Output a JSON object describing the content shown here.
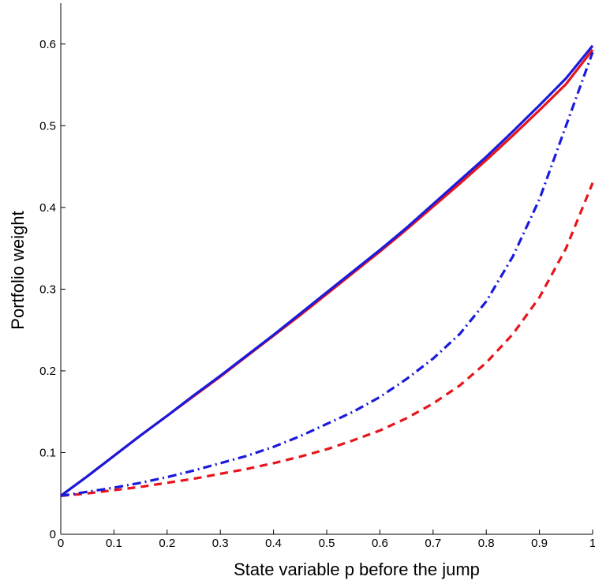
{
  "chart_data": {
    "type": "line",
    "title": "",
    "xlabel": "State variable p before the jump",
    "ylabel": "Portfolio weight",
    "xlim": [
      0,
      1
    ],
    "ylim": [
      0,
      0.65
    ],
    "xticks": [
      "0",
      "0.1",
      "0.2",
      "0.3",
      "0.4",
      "0.5",
      "0.6",
      "0.7",
      "0.8",
      "0.9",
      "1"
    ],
    "yticks": [
      "0",
      "0.1",
      "0.2",
      "0.3",
      "0.4",
      "0.5",
      "0.6"
    ],
    "grid": false,
    "x": [
      0,
      0.05,
      0.1,
      0.15,
      0.2,
      0.25,
      0.3,
      0.35,
      0.4,
      0.45,
      0.5,
      0.55,
      0.6,
      0.65,
      0.7,
      0.75,
      0.8,
      0.85,
      0.9,
      0.95,
      1.0
    ],
    "series": [
      {
        "style": "solid",
        "color": "#e8141c",
        "values": [
          0.047,
          0.071,
          0.096,
          0.121,
          0.145,
          0.169,
          0.193,
          0.218,
          0.243,
          0.268,
          0.294,
          0.32,
          0.346,
          0.373,
          0.401,
          0.429,
          0.458,
          0.488,
          0.519,
          0.551,
          0.593
        ]
      },
      {
        "style": "solid",
        "color": "#1a1adc",
        "values": [
          0.047,
          0.071,
          0.096,
          0.121,
          0.145,
          0.17,
          0.194,
          0.219,
          0.244,
          0.27,
          0.296,
          0.322,
          0.348,
          0.375,
          0.404,
          0.433,
          0.462,
          0.493,
          0.525,
          0.558,
          0.598
        ]
      },
      {
        "style": "dashed",
        "color": "#e8141c",
        "values": [
          0.047,
          0.05,
          0.054,
          0.058,
          0.063,
          0.068,
          0.074,
          0.08,
          0.087,
          0.095,
          0.104,
          0.115,
          0.127,
          0.142,
          0.16,
          0.182,
          0.21,
          0.245,
          0.29,
          0.35,
          0.43
        ]
      },
      {
        "style": "dashdot",
        "color": "#1a1adc",
        "values": [
          0.047,
          0.052,
          0.057,
          0.063,
          0.07,
          0.078,
          0.087,
          0.096,
          0.107,
          0.12,
          0.135,
          0.15,
          0.168,
          0.19,
          0.215,
          0.245,
          0.285,
          0.34,
          0.41,
          0.5,
          0.59
        ]
      }
    ]
  }
}
